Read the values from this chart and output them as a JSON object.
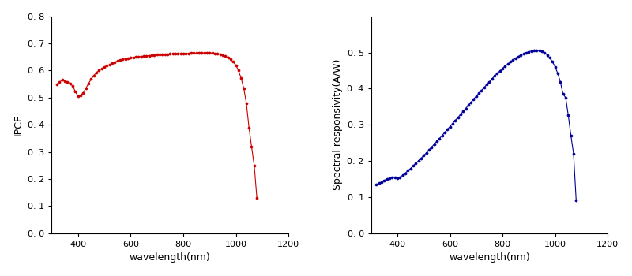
{
  "ipce_wavelength": [
    320,
    330,
    340,
    350,
    360,
    370,
    380,
    390,
    400,
    410,
    420,
    430,
    440,
    450,
    460,
    470,
    480,
    490,
    500,
    510,
    520,
    530,
    540,
    550,
    560,
    570,
    580,
    590,
    600,
    610,
    620,
    630,
    640,
    650,
    660,
    670,
    680,
    690,
    700,
    710,
    720,
    730,
    740,
    750,
    760,
    770,
    780,
    790,
    800,
    810,
    820,
    830,
    840,
    850,
    860,
    870,
    880,
    890,
    900,
    910,
    920,
    930,
    940,
    950,
    960,
    970,
    980,
    990,
    1000,
    1010,
    1020,
    1030,
    1040,
    1050,
    1060,
    1070,
    1080
  ],
  "ipce_values": [
    0.55,
    0.558,
    0.565,
    0.562,
    0.558,
    0.552,
    0.542,
    0.522,
    0.505,
    0.508,
    0.518,
    0.535,
    0.552,
    0.568,
    0.582,
    0.592,
    0.6,
    0.607,
    0.613,
    0.618,
    0.622,
    0.627,
    0.631,
    0.635,
    0.638,
    0.641,
    0.643,
    0.645,
    0.647,
    0.648,
    0.65,
    0.651,
    0.652,
    0.653,
    0.654,
    0.655,
    0.656,
    0.657,
    0.658,
    0.659,
    0.659,
    0.66,
    0.66,
    0.661,
    0.661,
    0.662,
    0.662,
    0.662,
    0.663,
    0.663,
    0.663,
    0.664,
    0.664,
    0.664,
    0.664,
    0.665,
    0.665,
    0.665,
    0.665,
    0.664,
    0.663,
    0.662,
    0.66,
    0.657,
    0.653,
    0.648,
    0.641,
    0.632,
    0.62,
    0.6,
    0.572,
    0.535,
    0.48,
    0.39,
    0.318,
    0.25,
    0.13
  ],
  "sr_wavelength": [
    320,
    330,
    340,
    350,
    360,
    370,
    380,
    390,
    400,
    410,
    420,
    430,
    440,
    450,
    460,
    470,
    480,
    490,
    500,
    510,
    520,
    530,
    540,
    550,
    560,
    570,
    580,
    590,
    600,
    610,
    620,
    630,
    640,
    650,
    660,
    670,
    680,
    690,
    700,
    710,
    720,
    730,
    740,
    750,
    760,
    770,
    780,
    790,
    800,
    810,
    820,
    830,
    840,
    850,
    860,
    870,
    880,
    890,
    900,
    910,
    920,
    930,
    940,
    950,
    960,
    970,
    980,
    990,
    1000,
    1010,
    1020,
    1030,
    1040,
    1050,
    1060,
    1070,
    1080
  ],
  "sr_values": [
    0.135,
    0.138,
    0.142,
    0.146,
    0.15,
    0.152,
    0.154,
    0.154,
    0.153,
    0.155,
    0.16,
    0.166,
    0.173,
    0.179,
    0.186,
    0.193,
    0.2,
    0.207,
    0.215,
    0.222,
    0.23,
    0.238,
    0.246,
    0.254,
    0.262,
    0.27,
    0.279,
    0.287,
    0.295,
    0.303,
    0.312,
    0.32,
    0.328,
    0.337,
    0.345,
    0.354,
    0.362,
    0.371,
    0.379,
    0.387,
    0.395,
    0.403,
    0.411,
    0.419,
    0.427,
    0.435,
    0.442,
    0.449,
    0.456,
    0.462,
    0.468,
    0.474,
    0.479,
    0.484,
    0.489,
    0.493,
    0.496,
    0.499,
    0.502,
    0.504,
    0.505,
    0.506,
    0.505,
    0.503,
    0.499,
    0.493,
    0.485,
    0.474,
    0.46,
    0.442,
    0.418,
    0.385,
    0.375,
    0.326,
    0.27,
    0.22,
    0.09
  ],
  "ipce_color": "#cc0000",
  "sr_color": "#000099",
  "xlabel": "wavelength(nm)",
  "ipce_ylabel": "IPCE",
  "sr_ylabel": "Spectral responsivity(A/W)",
  "xlim": [
    300,
    1200
  ],
  "ipce_ylim": [
    0.0,
    0.8
  ],
  "sr_ylim": [
    0.0,
    0.6
  ],
  "ipce_yticks": [
    0.0,
    0.1,
    0.2,
    0.3,
    0.4,
    0.5,
    0.6,
    0.7,
    0.8
  ],
  "sr_yticks": [
    0.0,
    0.1,
    0.2,
    0.3,
    0.4,
    0.5
  ],
  "xticks": [
    400,
    600,
    800,
    1000,
    1200
  ],
  "marker": "o",
  "markersize": 2.2,
  "linewidth": 0.8
}
